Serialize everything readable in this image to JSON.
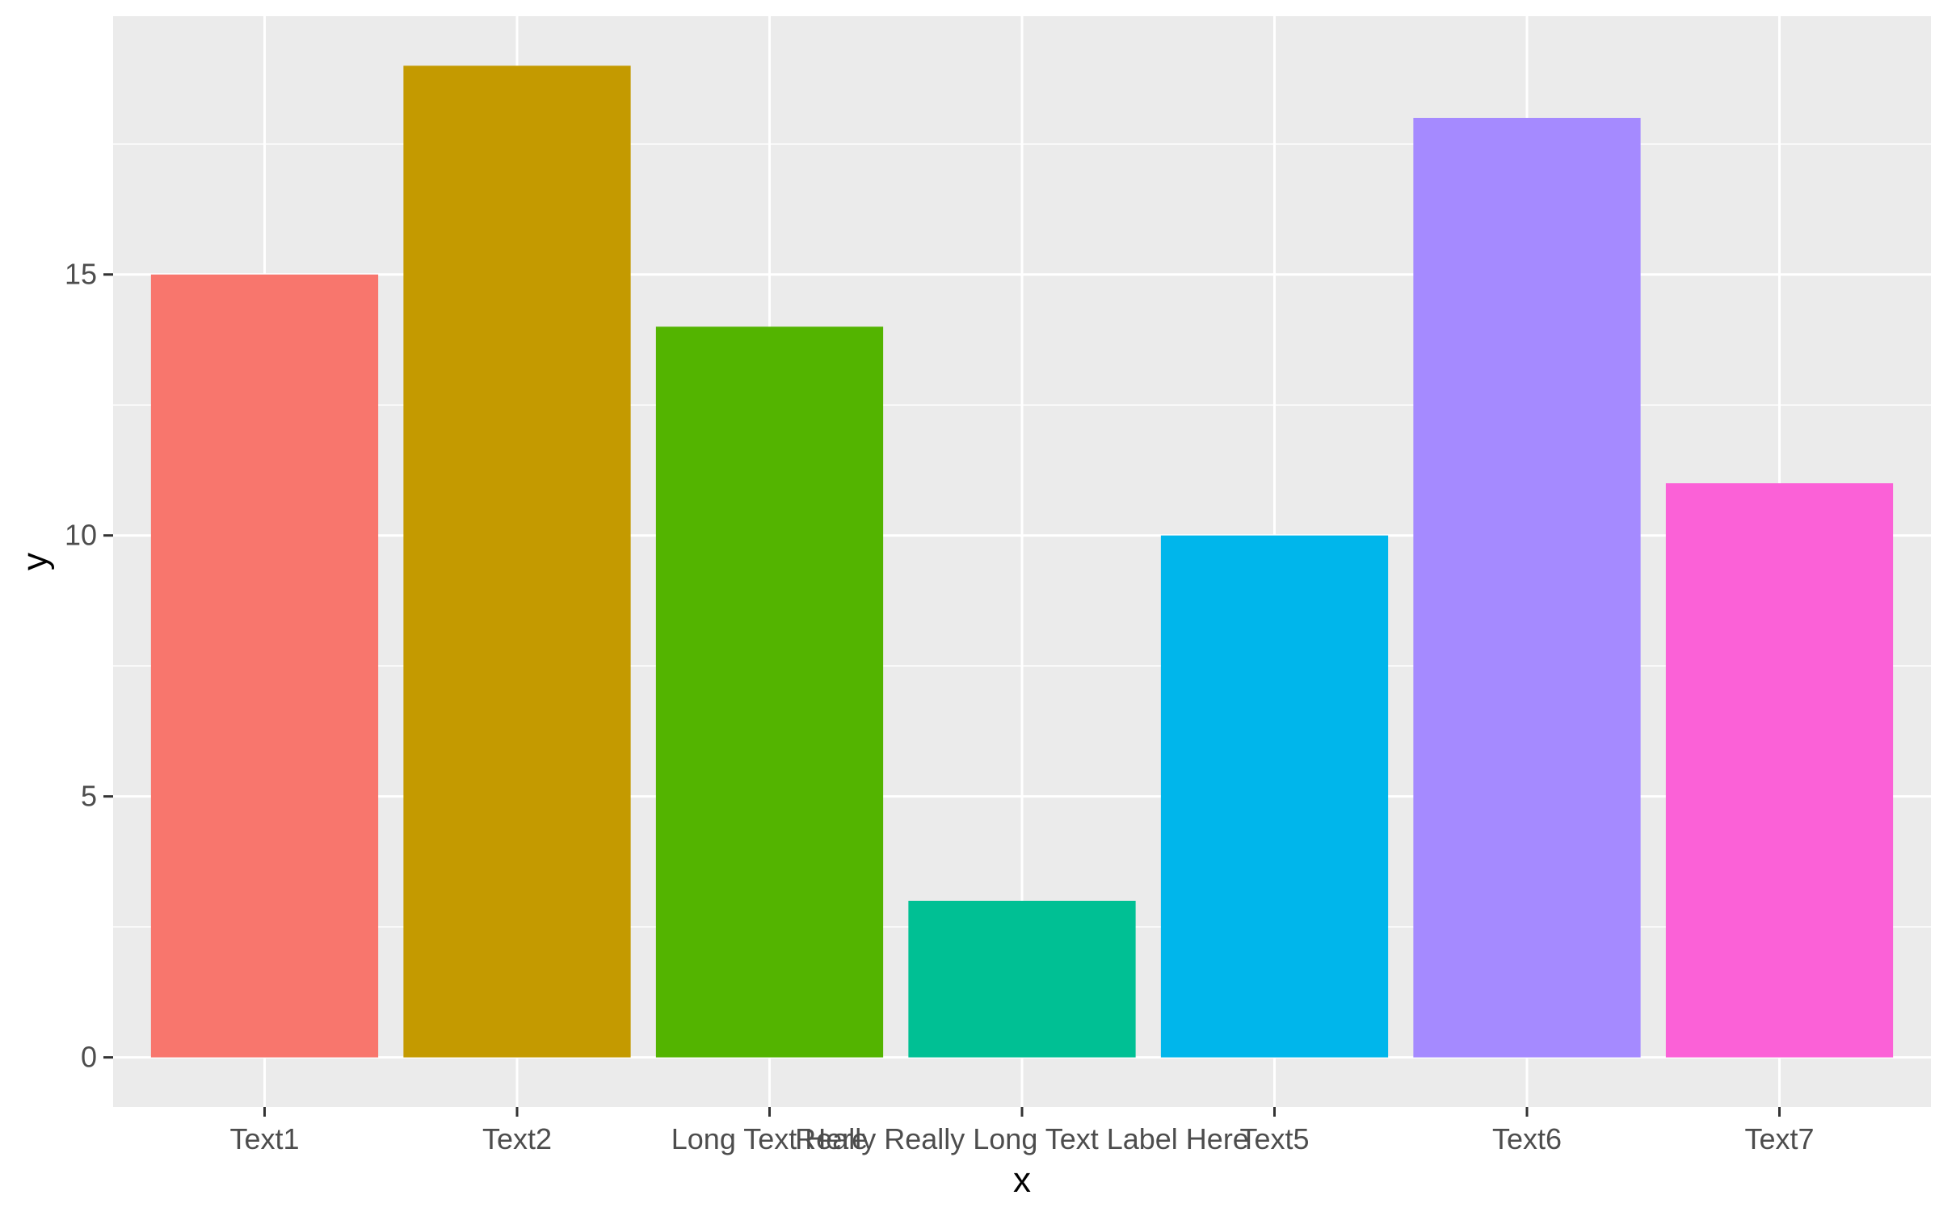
{
  "chart_data": {
    "type": "bar",
    "categories": [
      "Text1",
      "Text2",
      "Long Text Here",
      "Really Really Long Text Label Here",
      "Text5",
      "Text6",
      "Text7"
    ],
    "values": [
      15,
      19,
      14,
      3,
      10,
      18,
      11
    ],
    "colors": [
      "#F8766D",
      "#C49A00",
      "#53B400",
      "#00C094",
      "#00B6EB",
      "#A58AFF",
      "#FB61D7"
    ],
    "xlabel": "x",
    "ylabel": "y",
    "ylim": [
      -0.95,
      19.95
    ],
    "yticks": [
      0,
      5,
      10,
      15
    ],
    "y_tick_labels": [
      "0",
      "5",
      "10",
      "15"
    ],
    "grid": true,
    "legend": "none",
    "panel_background": "#EBEBEB",
    "grid_color": "#FFFFFF"
  }
}
